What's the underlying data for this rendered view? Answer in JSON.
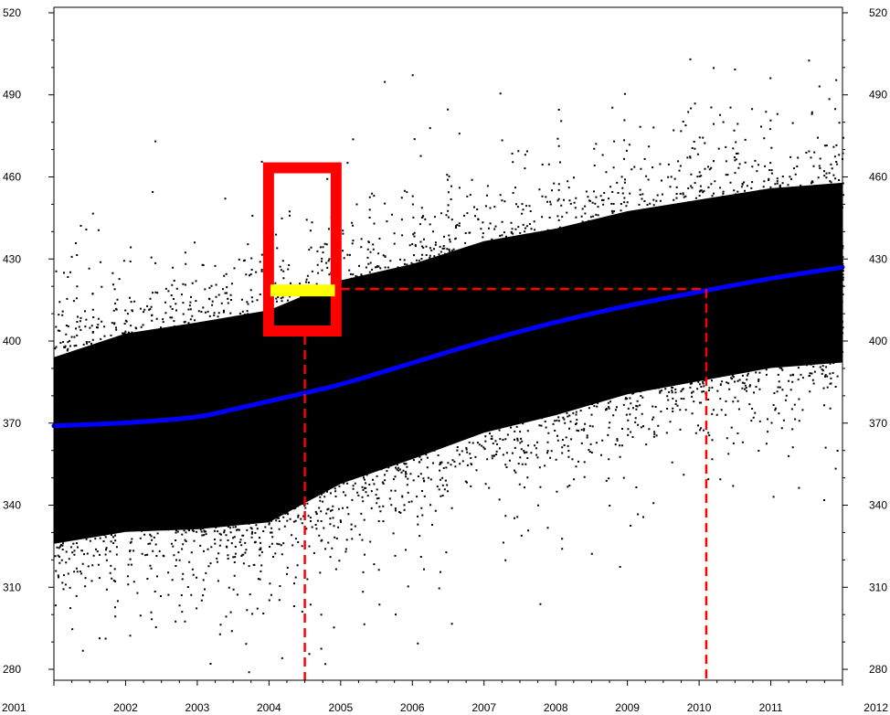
{
  "chart_data": {
    "type": "scatter",
    "title": "",
    "xlabel": "",
    "ylabel": "",
    "xlim": [
      2001,
      2012
    ],
    "ylim": [
      276,
      522
    ],
    "x_ticks": [
      "2001",
      "2002",
      "2003",
      "2004",
      "2005",
      "2006",
      "2007",
      "2008",
      "2009",
      "2010",
      "2011",
      "2012"
    ],
    "y_ticks": [
      "280",
      "310",
      "340",
      "370",
      "400",
      "430",
      "460",
      "490",
      "520"
    ],
    "y_ticks_right": [
      "280",
      "310",
      "340",
      "370",
      "400",
      "430",
      "460",
      "490",
      "520"
    ],
    "grid": false,
    "scatter_cloud": {
      "color": "#000000",
      "description_points": [
        {
          "x": 2001.0,
          "y_low": 305,
          "y_high": 415
        },
        {
          "x": 2002.0,
          "y_low": 308,
          "y_high": 425
        },
        {
          "x": 2003.0,
          "y_low": 308,
          "y_high": 430
        },
        {
          "x": 2004.0,
          "y_low": 310,
          "y_high": 435
        },
        {
          "x": 2005.0,
          "y_low": 325,
          "y_high": 445
        },
        {
          "x": 2006.0,
          "y_low": 335,
          "y_high": 450
        },
        {
          "x": 2007.0,
          "y_low": 345,
          "y_high": 458
        },
        {
          "x": 2008.0,
          "y_low": 352,
          "y_high": 462
        },
        {
          "x": 2009.0,
          "y_low": 360,
          "y_high": 468
        },
        {
          "x": 2010.0,
          "y_low": 365,
          "y_high": 472
        },
        {
          "x": 2011.0,
          "y_low": 370,
          "y_high": 476
        },
        {
          "x": 2012.0,
          "y_low": 372,
          "y_high": 478
        }
      ]
    },
    "series": [
      {
        "type": "line",
        "color": "#0000ff",
        "points": [
          {
            "x": 2001.0,
            "y": 369
          },
          {
            "x": 2002.0,
            "y": 370
          },
          {
            "x": 2003.0,
            "y": 372
          },
          {
            "x": 2003.5,
            "y": 375
          },
          {
            "x": 2004.0,
            "y": 378
          },
          {
            "x": 2004.5,
            "y": 381
          },
          {
            "x": 2005.0,
            "y": 384
          },
          {
            "x": 2006.0,
            "y": 392
          },
          {
            "x": 2007.0,
            "y": 400
          },
          {
            "x": 2008.0,
            "y": 407
          },
          {
            "x": 2009.0,
            "y": 413
          },
          {
            "x": 2010.0,
            "y": 418
          },
          {
            "x": 2011.0,
            "y": 423
          },
          {
            "x": 2012.0,
            "y": 427
          }
        ]
      }
    ],
    "annotations": {
      "red_box": {
        "x0": 2003.93,
        "x1": 2005.0,
        "y0": 402,
        "y1": 465,
        "color": "#ff0000"
      },
      "yellow_bar": {
        "x0": 2004.02,
        "x1": 2004.92,
        "y": 419,
        "color": "#ffff00"
      },
      "dashed_vertical_1": {
        "x": 2004.5,
        "y_from": 402,
        "y_to": 276,
        "color": "#ff0000"
      },
      "dashed_horizontal": {
        "x_from": 2005.0,
        "x_to": 2010.1,
        "y": 419,
        "color": "#ff0000"
      },
      "dashed_vertical_2": {
        "x": 2010.1,
        "y_from": 419,
        "y_to": 276,
        "color": "#ff0000"
      }
    }
  }
}
